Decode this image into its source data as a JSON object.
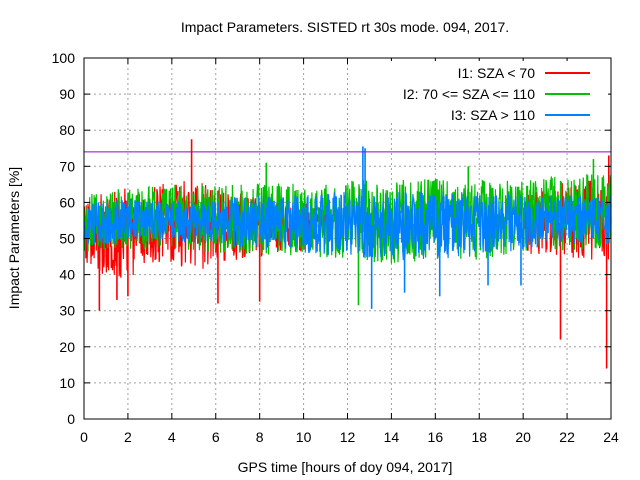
{
  "chart_data": {
    "type": "line",
    "title": "Impact Parameters. SISTED rt 30s mode. 094, 2017.",
    "xlabel": "GPS time [hours of doy 094, 2017]",
    "ylabel": "Impact Parameters [%]",
    "xlim": [
      0,
      24
    ],
    "ylim": [
      0,
      100
    ],
    "xticks": [
      0,
      2,
      4,
      6,
      8,
      10,
      12,
      14,
      16,
      18,
      20,
      22,
      24
    ],
    "yticks": [
      0,
      10,
      20,
      30,
      40,
      50,
      60,
      70,
      80,
      90,
      100
    ],
    "grid": true,
    "legend_position": "top-right",
    "reference_line": {
      "y": 74,
      "color": "#9400d3"
    },
    "series": [
      {
        "name": "I1: SZA < 70",
        "color": "#ff0000",
        "band": [
          {
            "x": 0,
            "low": 44,
            "high": 61
          },
          {
            "x": 1,
            "low": 38,
            "high": 63
          },
          {
            "x": 2,
            "low": 39,
            "high": 64
          },
          {
            "x": 3,
            "low": 42,
            "high": 65
          },
          {
            "x": 4,
            "low": 43,
            "high": 66
          },
          {
            "x": 5,
            "low": 41,
            "high": 67
          },
          {
            "x": 6,
            "low": 42,
            "high": 64
          },
          {
            "x": 7,
            "low": 43,
            "high": 63
          },
          {
            "x": 8,
            "low": 45,
            "high": 61
          },
          {
            "x": 9,
            "low": 46,
            "high": 60
          },
          {
            "x": 10,
            "low": 46,
            "high": 60
          },
          {
            "x": 11,
            "low": 47,
            "high": 59
          },
          {
            "x": 20,
            "low": 46,
            "high": 62
          },
          {
            "x": 21,
            "low": 45,
            "high": 64
          },
          {
            "x": 22,
            "low": 45,
            "high": 66
          },
          {
            "x": 23,
            "low": 44,
            "high": 66
          },
          {
            "x": 24,
            "low": 44,
            "high": 66
          }
        ],
        "outliers": [
          {
            "x": 0.7,
            "y": 30
          },
          {
            "x": 1.5,
            "y": 33
          },
          {
            "x": 2.0,
            "y": 34
          },
          {
            "x": 4.9,
            "y": 77.5
          },
          {
            "x": 6.1,
            "y": 32
          },
          {
            "x": 8.0,
            "y": 32.5
          },
          {
            "x": 21.7,
            "y": 22
          },
          {
            "x": 23.8,
            "y": 14
          },
          {
            "x": 23.9,
            "y": 73
          }
        ]
      },
      {
        "name": "I2: 70 <= SZA <= 110",
        "color": "#00c000",
        "band": [
          {
            "x": 0,
            "low": 46,
            "high": 63
          },
          {
            "x": 2,
            "low": 47,
            "high": 64
          },
          {
            "x": 4,
            "low": 47,
            "high": 65
          },
          {
            "x": 6,
            "low": 46,
            "high": 65
          },
          {
            "x": 8,
            "low": 45,
            "high": 65
          },
          {
            "x": 10,
            "low": 45,
            "high": 66
          },
          {
            "x": 12,
            "low": 44,
            "high": 66
          },
          {
            "x": 14,
            "low": 43,
            "high": 67
          },
          {
            "x": 16,
            "low": 44,
            "high": 67
          },
          {
            "x": 18,
            "low": 44,
            "high": 66
          },
          {
            "x": 20,
            "low": 46,
            "high": 66
          },
          {
            "x": 22,
            "low": 46,
            "high": 68
          },
          {
            "x": 24,
            "low": 47,
            "high": 68
          }
        ],
        "outliers": [
          {
            "x": 8.3,
            "y": 71
          },
          {
            "x": 12.5,
            "y": 31.5
          },
          {
            "x": 17.5,
            "y": 70
          },
          {
            "x": 23.2,
            "y": 72
          }
        ]
      },
      {
        "name": "I3: SZA > 110",
        "color": "#0080ff",
        "band": [
          {
            "x": 0,
            "low": 48,
            "high": 60
          },
          {
            "x": 2,
            "low": 49,
            "high": 61
          },
          {
            "x": 4,
            "low": 49,
            "high": 61
          },
          {
            "x": 6,
            "low": 48,
            "high": 61
          },
          {
            "x": 8,
            "low": 47,
            "high": 62
          },
          {
            "x": 10,
            "low": 46,
            "high": 62
          },
          {
            "x": 12,
            "low": 45,
            "high": 63
          },
          {
            "x": 14,
            "low": 44,
            "high": 63
          },
          {
            "x": 16,
            "low": 44,
            "high": 63
          },
          {
            "x": 18,
            "low": 45,
            "high": 63
          },
          {
            "x": 20,
            "low": 47,
            "high": 62
          },
          {
            "x": 22,
            "low": 48,
            "high": 62
          },
          {
            "x": 24,
            "low": 48,
            "high": 62
          }
        ],
        "outliers": [
          {
            "x": 12.7,
            "y": 75.5
          },
          {
            "x": 12.8,
            "y": 75
          },
          {
            "x": 13.1,
            "y": 30.5
          },
          {
            "x": 14.6,
            "y": 35
          },
          {
            "x": 16.2,
            "y": 34
          },
          {
            "x": 18.4,
            "y": 37
          },
          {
            "x": 19.9,
            "y": 37
          }
        ]
      }
    ]
  }
}
